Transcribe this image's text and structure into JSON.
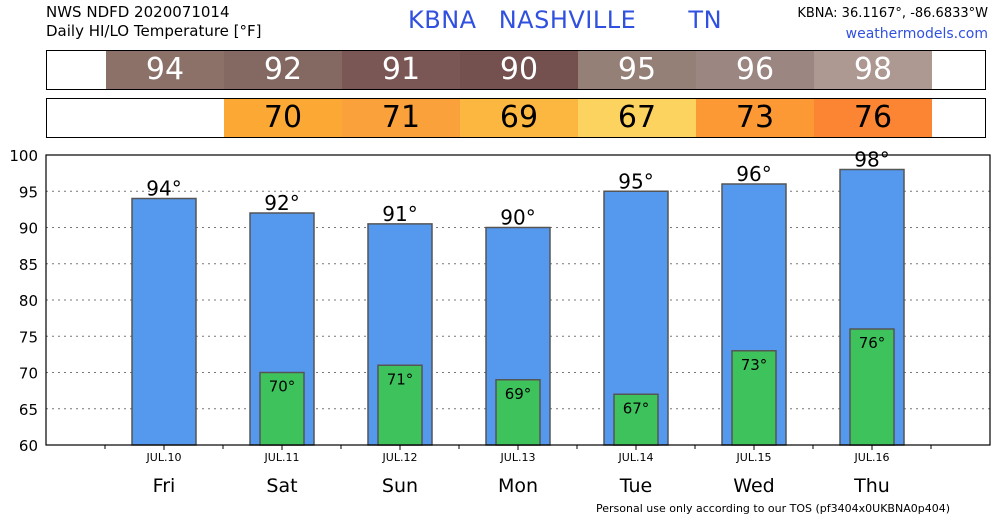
{
  "header": {
    "line1": "NWS NDFD 2020071014",
    "line2": "Daily HI/LO Temperature [°F]",
    "station": "KBNA",
    "city": "NASHVILLE",
    "state": "TN",
    "coords": "KBNA: 36.1167°, -86.6833°W",
    "site": "weathermodels.com"
  },
  "hi_strip": [
    {
      "value": "94",
      "color": "#8c7169"
    },
    {
      "value": "92",
      "color": "#846862"
    },
    {
      "value": "91",
      "color": "#7a5655"
    },
    {
      "value": "90",
      "color": "#74504f"
    },
    {
      "value": "95",
      "color": "#958078"
    },
    {
      "value": "96",
      "color": "#9b8682"
    },
    {
      "value": "98",
      "color": "#ad9892"
    }
  ],
  "lo_strip": [
    {
      "value": "",
      "color": "#ffffff"
    },
    {
      "value": "70",
      "color": "#fba934"
    },
    {
      "value": "71",
      "color": "#fba13c"
    },
    {
      "value": "69",
      "color": "#fcb741"
    },
    {
      "value": "67",
      "color": "#fdd35f"
    },
    {
      "value": "73",
      "color": "#fc9935"
    },
    {
      "value": "76",
      "color": "#fb8533"
    }
  ],
  "chart_data": {
    "type": "bar",
    "categories": [
      "JUL.10",
      "JUL.11",
      "JUL.12",
      "JUL.13",
      "JUL.14",
      "JUL.15",
      "JUL.16"
    ],
    "days": [
      "Fri",
      "Sat",
      "Sun",
      "Mon",
      "Tue",
      "Wed",
      "Thu"
    ],
    "series": [
      {
        "values": [
          94,
          92,
          90.5,
          90,
          95,
          96,
          98
        ],
        "labels": [
          "94°",
          "92°",
          "91°",
          "90°",
          "95°",
          "96°",
          "98°"
        ],
        "color": "#5599ee"
      },
      {
        "values": [
          null,
          70,
          71,
          69,
          67,
          73,
          76
        ],
        "labels": [
          "",
          "70°",
          "71°",
          "69°",
          "67°",
          "73°",
          "76°"
        ],
        "color": "#3ec35c"
      }
    ],
    "ylim": [
      60,
      100
    ],
    "yticks": [
      60,
      65,
      70,
      75,
      80,
      85,
      90,
      95,
      100
    ],
    "grid": true
  },
  "footer": "Personal use only according to our TOS (pf3404x0UKBNA0p404)"
}
